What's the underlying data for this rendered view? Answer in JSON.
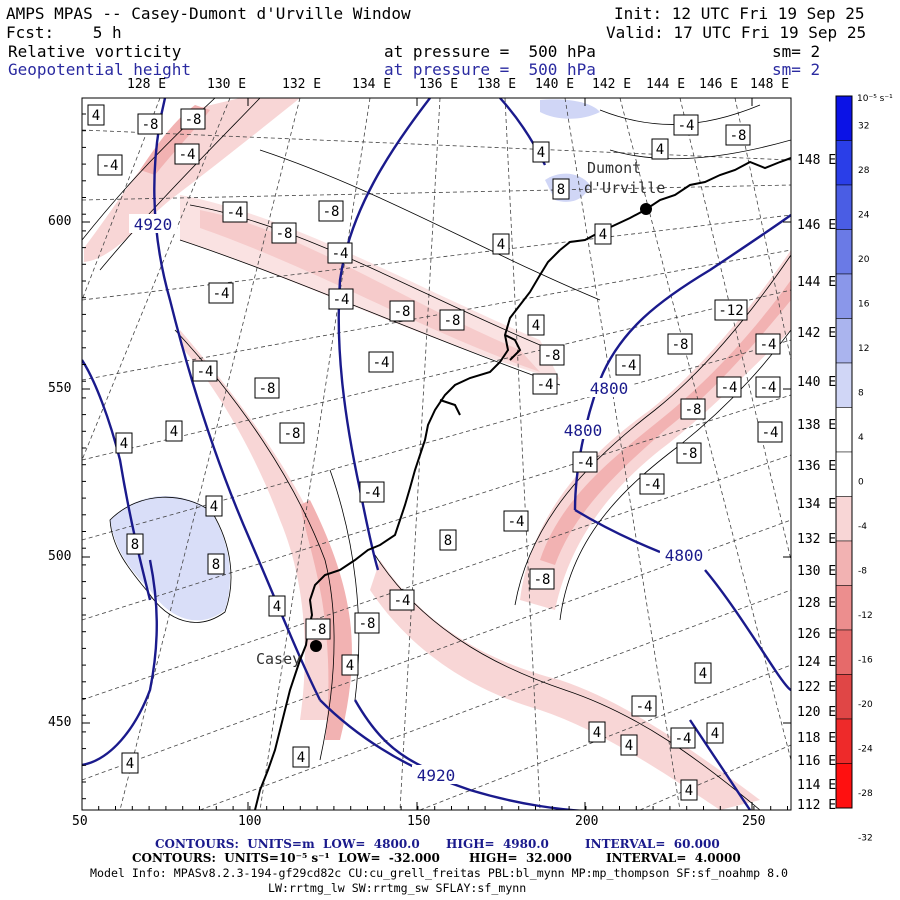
{
  "header": {
    "title": "AMPS MPAS -- Casey-Dumont d'Urville Window",
    "init": "Init: 12 UTC Fri 19 Sep 25",
    "fcst": "Fcst:    5 h",
    "valid": "Valid: 17 UTC Fri 19 Sep 25",
    "field1_name": "Relative vorticity",
    "field1_level": "at pressure =  500 hPa",
    "field1_sm": "sm= 2",
    "field2_name": "Geopotential height",
    "field2_level": "at pressure =  500 hPa",
    "field2_sm": "sm= 2"
  },
  "colors": {
    "height_contour": "#1a1a8c",
    "vort_contour": "#000000",
    "coast": "#000000"
  },
  "top_lon_labels": [
    "128 E",
    "130 E",
    "132 E",
    "134 E",
    "136 E",
    "138 E",
    "140 E",
    "142 E",
    "144 E",
    "146 E",
    "148 E"
  ],
  "right_lon_labels": [
    "148 E",
    "146 E",
    "144 E",
    "142 E",
    "140 E",
    "138 E",
    "136 E",
    "134 E",
    "132 E",
    "130 E",
    "128 E",
    "126 E",
    "124 E",
    "122 E",
    "120 E",
    "118 E",
    "116 E",
    "114 E",
    "112 E"
  ],
  "x_axis": {
    "ticks": [
      "50",
      "100",
      "150",
      "200",
      "250"
    ]
  },
  "y_axis": {
    "ticks": [
      "600",
      "550",
      "500",
      "450"
    ]
  },
  "colorbar": {
    "unit_label": "10⁻⁵ s⁻¹",
    "tick_labels": [
      "32",
      "28",
      "24",
      "20",
      "16",
      "12",
      "8",
      "4",
      "0",
      "-4",
      "-8",
      "-12",
      "-16",
      "-20",
      "-24",
      "-28",
      "-32"
    ],
    "swatches": [
      "#0b12e6",
      "#2a3ee8",
      "#4a5de4",
      "#6a7ae6",
      "#8a97ea",
      "#aab4ee",
      "#d0d6f6",
      "#ffffff",
      "#ffffff",
      "#f8d6d6",
      "#f2b2b2",
      "#ec8e8e",
      "#e66a6a",
      "#e04646",
      "#ee2a2a",
      "#ff1010"
    ]
  },
  "stations": [
    "Dumont\nd'Urville",
    "Casey"
  ],
  "height_labels": [
    "4920",
    "4800",
    "4800",
    "4800",
    "4920"
  ],
  "vort_labels": [
    "4",
    "-8",
    "-8",
    "-4",
    "-4",
    "-4",
    "-8",
    "-8",
    "-4",
    "-4",
    "-4",
    "-8",
    "4",
    "8",
    "4",
    "4",
    "-8",
    "4",
    "-4",
    "-8",
    "-4",
    "-8",
    "-4",
    "-12",
    "-4",
    "-8",
    "-4",
    "-4",
    "-8",
    "4",
    "-8",
    "4",
    "4",
    "-4",
    "-4",
    "8",
    "8",
    "8",
    "-4",
    "-4",
    "-4",
    "-8",
    "-8",
    "-4",
    "-8",
    "-8",
    "4",
    "-8",
    "4",
    "-4",
    "-4",
    "4",
    "4",
    "4",
    "4",
    "-4",
    "4",
    "4",
    "4",
    "-4",
    "4"
  ],
  "footer": {
    "line1_a": "CONTOURS:  UNITS=m  LOW=  4800.0",
    "line1_b": "HIGH=  4980.0",
    "line1_c": "INTERVAL=  60.000",
    "line2_a": "CONTOURS:  UNITS=10⁻⁵ s⁻¹  LOW=  -32.000",
    "line2_b": "HIGH=  32.000",
    "line2_c": "INTERVAL=  4.0000",
    "model_info": "Model Info: MPASv8.2.3-194-gf29cd82c CU:cu_grell_freitas PBL:bl_mynn MP:mp_thompson SF:sf_noahmp 8.0",
    "model_info2": "LW:rrtmg_lw SW:rrtmg_sw SFLAY:sf_mynn"
  }
}
